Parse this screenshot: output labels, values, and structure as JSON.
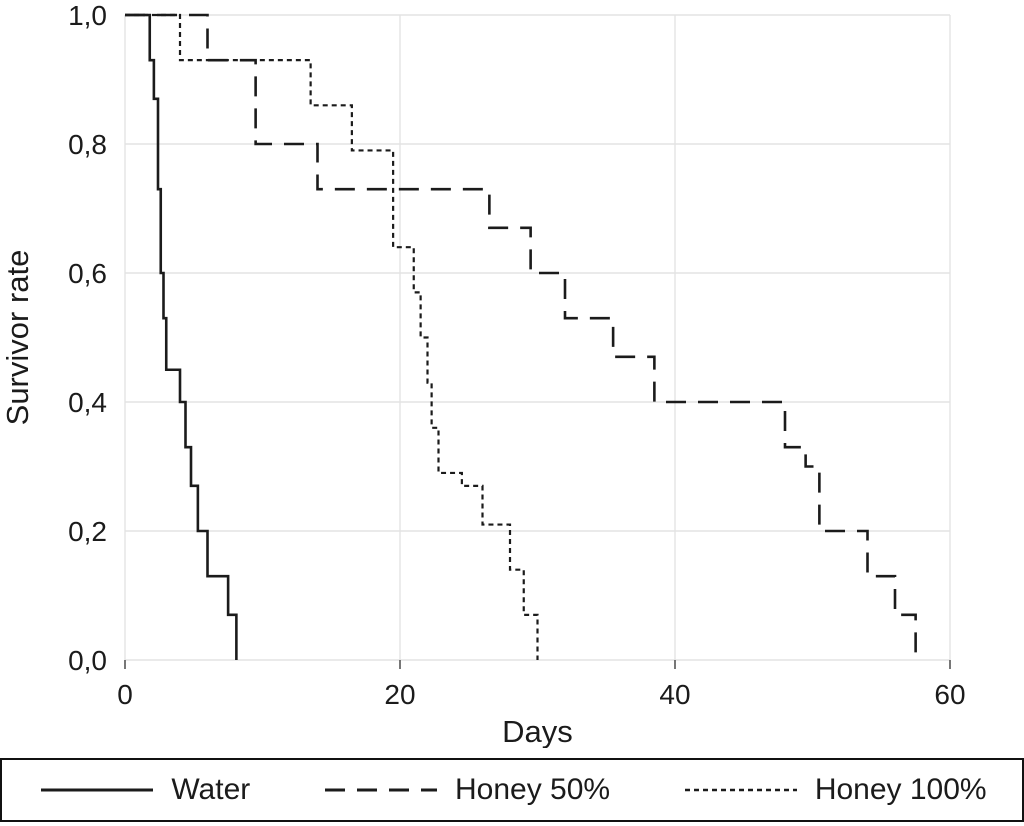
{
  "chart_data": {
    "type": "line",
    "subtype": "step-survival",
    "title": "",
    "xlabel": "Days",
    "ylabel": "Survivor rate",
    "xlim": [
      0,
      60
    ],
    "ylim": [
      0,
      1
    ],
    "grid": true,
    "legend_position": "bottom",
    "x_ticks": [
      0,
      20,
      40,
      60
    ],
    "x_tick_labels": [
      "0",
      "20",
      "40",
      "60"
    ],
    "y_ticks": [
      0,
      0.2,
      0.4,
      0.6,
      0.8,
      1.0
    ],
    "y_tick_labels": [
      "0,0",
      "0,2",
      "0,4",
      "0,6",
      "0,8",
      "1,0"
    ],
    "series": [
      {
        "name": "Water",
        "dash": "solid",
        "start": 1.0,
        "steps": [
          [
            1.8,
            0.93
          ],
          [
            2.1,
            0.87
          ],
          [
            2.4,
            0.73
          ],
          [
            2.6,
            0.6
          ],
          [
            2.8,
            0.53
          ],
          [
            3.0,
            0.45
          ],
          [
            4.0,
            0.4
          ],
          [
            4.4,
            0.33
          ],
          [
            4.8,
            0.27
          ],
          [
            5.3,
            0.2
          ],
          [
            6.0,
            0.13
          ],
          [
            7.5,
            0.07
          ],
          [
            8.1,
            0.0
          ]
        ]
      },
      {
        "name": "Honey 50%",
        "dash": "long-dash",
        "start": 1.0,
        "steps": [
          [
            6,
            0.93
          ],
          [
            9.5,
            0.8
          ],
          [
            14,
            0.73
          ],
          [
            26.5,
            0.67
          ],
          [
            29.5,
            0.6
          ],
          [
            32,
            0.53
          ],
          [
            35.5,
            0.47
          ],
          [
            38.5,
            0.4
          ],
          [
            48,
            0.33
          ],
          [
            49.5,
            0.3
          ],
          [
            50.5,
            0.2
          ],
          [
            54,
            0.13
          ],
          [
            56,
            0.07
          ],
          [
            57.5,
            0.0
          ]
        ]
      },
      {
        "name": "Honey 100%",
        "dash": "short-dash",
        "start": 1.0,
        "steps": [
          [
            4,
            0.93
          ],
          [
            13.5,
            0.86
          ],
          [
            16.5,
            0.79
          ],
          [
            19.5,
            0.64
          ],
          [
            21,
            0.57
          ],
          [
            21.5,
            0.5
          ],
          [
            22,
            0.43
          ],
          [
            22.3,
            0.36
          ],
          [
            22.8,
            0.29
          ],
          [
            24.5,
            0.27
          ],
          [
            26,
            0.21
          ],
          [
            28,
            0.14
          ],
          [
            29,
            0.07
          ],
          [
            30,
            0.0
          ]
        ]
      }
    ]
  },
  "colors": {
    "line": "#1b1b1b",
    "grid": "#e3e3e3",
    "tick": "#555555",
    "text": "#1b1b1b",
    "legend_border": "#111111",
    "background": "#ffffff"
  }
}
